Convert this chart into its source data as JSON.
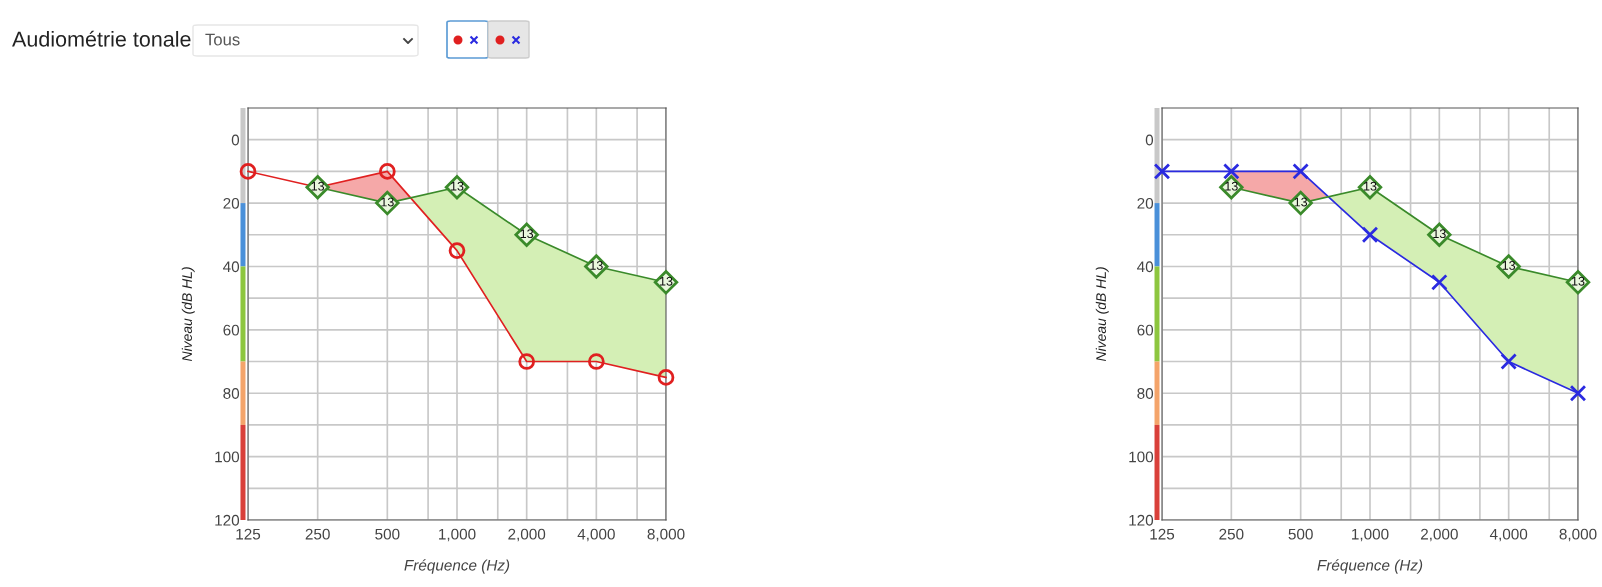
{
  "chart_data": [
    {
      "type": "line",
      "title": "Audiométrie tonale",
      "annotations": [
        "Tous",
        {
          "text": "13",
          "x": 250,
          "y": 15
        },
        {
          "text": "13",
          "x": 500,
          "y": 20
        },
        {
          "text": "13",
          "x": 1000,
          "y": 15
        },
        {
          "text": "13",
          "x": 2000,
          "y": 30
        },
        {
          "text": "13",
          "x": 4000,
          "y": 40
        },
        {
          "text": "13",
          "x": 8000,
          "y": 45
        }
      ],
      "xlabel": "Fréquence (Hz)",
      "ylabel": "Niveau (dB HL)",
      "log": "x",
      "xlim": [
        125,
        8000
      ],
      "xticks": [
        125,
        250,
        500,
        {
          "value": 750,
          "label": null
        },
        {
          "value": 1000,
          "label": "1,000"
        },
        {
          "value": 1500,
          "label": null
        },
        {
          "value": 2000,
          "label": "2,000"
        },
        {
          "value": 3000,
          "label": null
        },
        {
          "value": 4000,
          "label": "4,000"
        },
        {
          "value": 6000,
          "label": null
        },
        {
          "value": 8000,
          "label": "8,000"
        }
      ],
      "ylim": [
        120,
        -10
      ],
      "yticks": [
        0,
        {
          "value": 10,
          "label": null
        },
        20,
        {
          "value": 30,
          "label": null
        },
        40,
        {
          "value": 50,
          "label": null
        },
        60,
        {
          "value": 70,
          "label": null
        },
        80,
        {
          "value": 90,
          "label": null
        },
        100,
        {
          "value": 110,
          "label": null
        },
        120
      ],
      "grid": true,
      "series": [
        {
          "color": "#e02020",
          "marker": "circle",
          "x": [
            125,
            250,
            500,
            1000,
            2000,
            4000,
            8000
          ],
          "values": [
            10,
            15,
            10,
            35,
            70,
            70,
            75
          ]
        },
        {
          "color": "#3a8a2a",
          "marker": "diamond",
          "x": [
            250,
            500,
            1000,
            2000,
            4000,
            8000
          ],
          "values": [
            15,
            20,
            15,
            30,
            40,
            45
          ],
          "lower": [
            15,
            10,
            35,
            70,
            70,
            75
          ],
          "upper": [
            15,
            20,
            15,
            30,
            40,
            45
          ]
        }
      ]
    },
    {
      "type": "line",
      "annotations": [
        {
          "text": "13",
          "x": 250,
          "y": 15
        },
        {
          "text": "13",
          "x": 500,
          "y": 20
        },
        {
          "text": "13",
          "x": 1000,
          "y": 15
        },
        {
          "text": "13",
          "x": 2000,
          "y": 30
        },
        {
          "text": "13",
          "x": 4000,
          "y": 40
        },
        {
          "text": "13",
          "x": 8000,
          "y": 45
        }
      ],
      "xlabel": "Fréquence (Hz)",
      "ylabel": "Niveau (dB HL)",
      "log": "x",
      "xlim": [
        125,
        8000
      ],
      "xticks": [
        125,
        250,
        500,
        {
          "value": 750,
          "label": null
        },
        {
          "value": 1000,
          "label": "1,000"
        },
        {
          "value": 1500,
          "label": null
        },
        {
          "value": 2000,
          "label": "2,000"
        },
        {
          "value": 3000,
          "label": null
        },
        {
          "value": 4000,
          "label": "4,000"
        },
        {
          "value": 6000,
          "label": null
        },
        {
          "value": 8000,
          "label": "8,000"
        }
      ],
      "ylim": [
        120,
        -10
      ],
      "yticks": [
        0,
        {
          "value": 10,
          "label": null
        },
        20,
        {
          "value": 30,
          "label": null
        },
        40,
        {
          "value": 50,
          "label": null
        },
        60,
        {
          "value": 70,
          "label": null
        },
        80,
        {
          "value": 90,
          "label": null
        },
        100,
        {
          "value": 110,
          "label": null
        },
        120
      ],
      "grid": true,
      "series": [
        {
          "color": "#2a2ae0",
          "marker": "cross",
          "x": [
            125,
            250,
            500,
            1000,
            2000,
            4000,
            8000
          ],
          "values": [
            10,
            10,
            10,
            30,
            45,
            70,
            80
          ]
        },
        {
          "color": "#3a8a2a",
          "marker": "diamond",
          "x": [
            250,
            500,
            1000,
            2000,
            4000,
            8000
          ],
          "values": [
            15,
            20,
            15,
            30,
            40,
            45
          ],
          "lower": [
            10,
            10,
            30,
            45,
            70,
            80
          ],
          "upper": [
            15,
            20,
            15,
            30,
            40,
            45
          ]
        }
      ]
    }
  ]
}
